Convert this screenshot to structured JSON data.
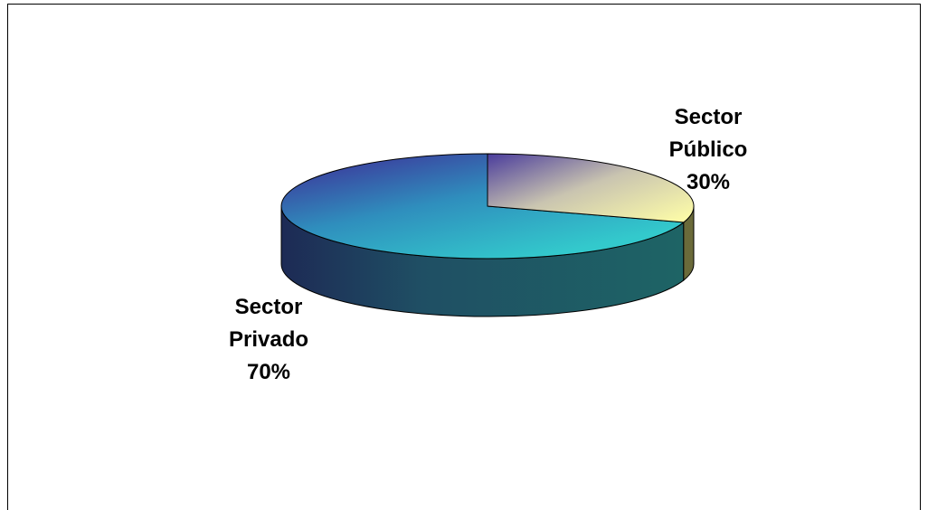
{
  "chart_data": {
    "type": "pie",
    "style": "3d",
    "slices": [
      {
        "label": "Sector Privado",
        "value": 70,
        "value_label": "70%",
        "color": "#33c2c8"
      },
      {
        "label": "Sector Público",
        "value": 30,
        "value_label": "30%",
        "color": "#f8f6a8"
      }
    ],
    "legend": "none",
    "title": ""
  }
}
